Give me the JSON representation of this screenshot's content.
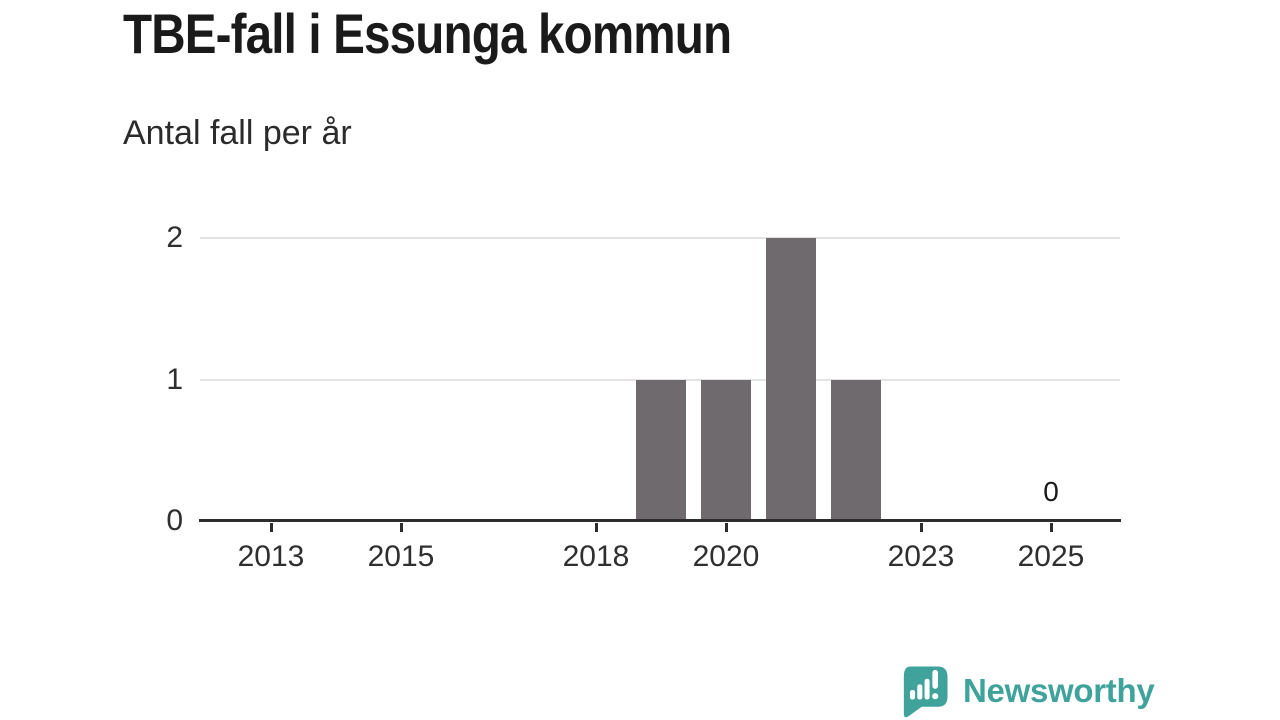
{
  "title": "TBE-fall i Essunga kommun",
  "subtitle": "Antal fall per år",
  "chart_data": {
    "type": "bar",
    "title": "TBE-fall i Essunga kommun",
    "subtitle": "Antal fall per år",
    "x": [
      2012,
      2013,
      2014,
      2015,
      2016,
      2017,
      2018,
      2019,
      2020,
      2021,
      2022,
      2023,
      2024,
      2025
    ],
    "values": [
      0,
      0,
      0,
      0,
      0,
      0,
      0,
      1,
      1,
      2,
      1,
      0,
      0,
      0
    ],
    "xticks": [
      2013,
      2015,
      2018,
      2020,
      2023,
      2025
    ],
    "yticks": [
      0,
      1,
      2
    ],
    "ylim": [
      0,
      2
    ],
    "xlabel": "",
    "ylabel": "Antal fall per år",
    "grid": "horizontal-light",
    "legend": "none",
    "bar_color": "#6e6a6e",
    "axis_color": "#2d2d2d",
    "gridline_color": "#e3e3e3",
    "value_labels": [
      {
        "x": 2025,
        "label": "0"
      }
    ]
  },
  "branding": {
    "logo_text": "Newsworthy",
    "brand_color": "#3fa39c",
    "logo_icon": "bar-chart-speech-bubble-icon"
  }
}
